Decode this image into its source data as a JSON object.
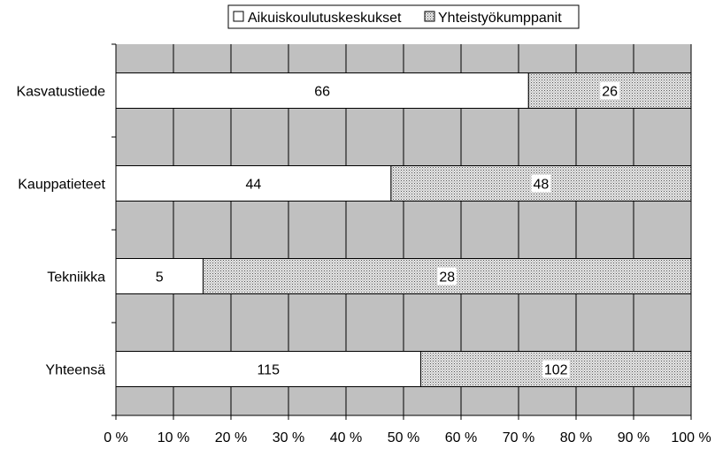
{
  "chart_data": {
    "type": "bar",
    "orientation": "horizontal",
    "stacked": "percent",
    "categories": [
      "Kasvatustiede",
      "Kauppatieteet",
      "Tekniikka",
      "Yhteensä"
    ],
    "series": [
      {
        "name": "Aikuiskoulutuskeskukset",
        "values": [
          66,
          44,
          5,
          115
        ],
        "color": "#ffffff",
        "pattern": "none"
      },
      {
        "name": "Yhteistyökumppanit",
        "values": [
          26,
          48,
          28,
          102
        ],
        "color": "#d9d9d9",
        "pattern": "dotted"
      }
    ],
    "xticks": [
      "0 %",
      "10 %",
      "20 %",
      "30 %",
      "40 %",
      "50 %",
      "60 %",
      "70 %",
      "80 %",
      "90 %",
      "100 %"
    ],
    "xlim": [
      0,
      100
    ],
    "plot_background": "#c0c0c0",
    "grid": true,
    "legend_position": "top"
  }
}
